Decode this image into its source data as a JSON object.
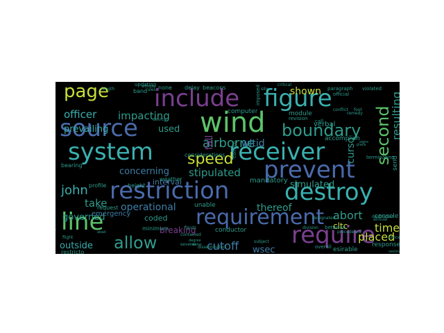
{
  "word_cloud": {
    "background": "#000000",
    "palette": {
      "purple": "#7a3f8f",
      "deep_purple": "#5b2a86",
      "blue": "#4a6bab",
      "indigo": "#3f4f9a",
      "teal": "#2f9c8c",
      "cyan": "#3ab0b0",
      "green": "#5cc36a",
      "lime": "#c9df3a",
      "steel": "#3d7fa8"
    },
    "words": [
      {
        "text": "page",
        "color": "lime"
      },
      {
        "text": "include",
        "color": "purple"
      },
      {
        "text": "figure",
        "color": "cyan"
      },
      {
        "text": "second",
        "color": "green"
      },
      {
        "text": "source",
        "color": "blue"
      },
      {
        "text": "wind",
        "color": "green"
      },
      {
        "text": "boundary",
        "color": "teal"
      },
      {
        "text": "system",
        "color": "cyan"
      },
      {
        "text": "receiver",
        "color": "cyan"
      },
      {
        "text": "prevent",
        "color": "blue"
      },
      {
        "text": "restriction",
        "color": "blue"
      },
      {
        "text": "destroy",
        "color": "cyan"
      },
      {
        "text": "john",
        "color": "cyan"
      },
      {
        "text": "line",
        "color": "green"
      },
      {
        "text": "requirement",
        "color": "blue"
      },
      {
        "text": "require",
        "color": "purple"
      },
      {
        "text": "allow",
        "color": "teal"
      },
      {
        "text": "speed",
        "color": "lime"
      },
      {
        "text": "airborne",
        "color": "teal"
      },
      {
        "text": "stipulated",
        "color": "teal"
      },
      {
        "text": "concerning",
        "color": "steel"
      },
      {
        "text": "operational",
        "color": "steel"
      },
      {
        "text": "officer",
        "color": "cyan"
      },
      {
        "text": "impacting",
        "color": "teal"
      },
      {
        "text": "shown",
        "color": "lime"
      },
      {
        "text": "resulting",
        "color": "teal"
      },
      {
        "text": "curso",
        "color": "teal"
      },
      {
        "text": "fall",
        "color": "purple"
      },
      {
        "text": "witid",
        "color": "steel"
      },
      {
        "text": "used",
        "color": "teal"
      },
      {
        "text": "prevailing",
        "color": "cyan"
      },
      {
        "text": "take",
        "color": "teal"
      },
      {
        "text": "governed",
        "color": "teal"
      },
      {
        "text": "outside",
        "color": "cyan"
      },
      {
        "text": "thereof",
        "color": "teal"
      },
      {
        "text": "simulated",
        "color": "teal"
      },
      {
        "text": "abort",
        "color": "teal"
      },
      {
        "text": "timer",
        "color": "lime"
      },
      {
        "text": "placed",
        "color": "lime"
      },
      {
        "text": "cltc",
        "color": "lime"
      },
      {
        "text": "cutoff",
        "color": "steel"
      },
      {
        "text": "wsec",
        "color": "steel"
      },
      {
        "text": "breaking",
        "color": "purple"
      },
      {
        "text": "coded",
        "color": "teal"
      },
      {
        "text": "emergency",
        "color": "steel"
      },
      {
        "text": "interval",
        "color": "steel"
      },
      {
        "text": "mandatory",
        "color": "teal"
      },
      {
        "text": "verbal",
        "color": "teal"
      },
      {
        "text": "send",
        "color": "teal"
      },
      {
        "text": "conductor",
        "color": "teal"
      },
      {
        "text": "response",
        "color": "teal"
      },
      {
        "text": "esirable",
        "color": "teal"
      },
      {
        "text": "console",
        "color": "teal"
      },
      {
        "text": "request",
        "color": "teal"
      },
      {
        "text": "minimum",
        "color": "teal"
      },
      {
        "text": "unable",
        "color": "teal"
      },
      {
        "text": "computer",
        "color": "teal"
      },
      {
        "text": "module",
        "color": "teal"
      },
      {
        "text": "accomplish",
        "color": "teal"
      },
      {
        "text": "considerations",
        "color": "teal"
      },
      {
        "text": "bearing",
        "color": "teal"
      },
      {
        "text": "weather",
        "color": "teal"
      },
      {
        "text": "height",
        "color": "teal"
      },
      {
        "text": "profile",
        "color": "teal"
      },
      {
        "text": "delay",
        "color": "teal"
      },
      {
        "text": "beacons",
        "color": "teal"
      },
      {
        "text": "none",
        "color": "teal"
      },
      {
        "text": "band",
        "color": "teal"
      },
      {
        "text": "updating",
        "color": "teal"
      },
      {
        "text": "imposed",
        "color": "teal"
      },
      {
        "text": "revision",
        "color": "teal"
      },
      {
        "text": "paragraph",
        "color": "teal"
      },
      {
        "text": "violated",
        "color": "teal"
      },
      {
        "text": "official",
        "color": "teal"
      },
      {
        "text": "critical",
        "color": "teal"
      },
      {
        "text": "control",
        "color": "teal"
      },
      {
        "text": "call",
        "color": "teal"
      },
      {
        "text": "terminating",
        "color": "teal"
      },
      {
        "text": "designated",
        "color": "teal"
      },
      {
        "text": "betwean",
        "color": "teal"
      },
      {
        "text": "precedence",
        "color": "teal"
      },
      {
        "text": "overall",
        "color": "teal"
      },
      {
        "text": "destructed",
        "color": "teal"
      },
      {
        "text": "division",
        "color": "teal"
      },
      {
        "text": "annual",
        "color": "teal"
      },
      {
        "text": "subject",
        "color": "teal"
      },
      {
        "text": "contained",
        "color": "teal"
      },
      {
        "text": "disseminated",
        "color": "teal"
      },
      {
        "text": "several",
        "color": "teal"
      },
      {
        "text": "restricto",
        "color": "teal"
      },
      {
        "text": "figuts",
        "color": "teal"
      },
      {
        "text": "device",
        "color": "teal"
      },
      {
        "text": "altitude",
        "color": "teal"
      },
      {
        "text": "foot",
        "color": "teal"
      },
      {
        "text": "procedure",
        "color": "teal"
      },
      {
        "text": "vesting",
        "color": "teal"
      },
      {
        "text": "conflict",
        "color": "teal"
      },
      {
        "text": "remedy",
        "color": "teal"
      },
      {
        "text": "signs",
        "color": "teal"
      },
      {
        "text": "flight",
        "color": "teal"
      },
      {
        "text": "degree",
        "color": "teal"
      },
      {
        "text": "meter",
        "color": "teal"
      },
      {
        "text": "length",
        "color": "teal"
      },
      {
        "text": "rules",
        "color": "teal"
      },
      {
        "text": "silo",
        "color": "teal"
      },
      {
        "text": "place",
        "color": "teal"
      },
      {
        "text": "visibility",
        "color": "teal"
      },
      {
        "text": "abad",
        "color": "teal"
      }
    ]
  }
}
